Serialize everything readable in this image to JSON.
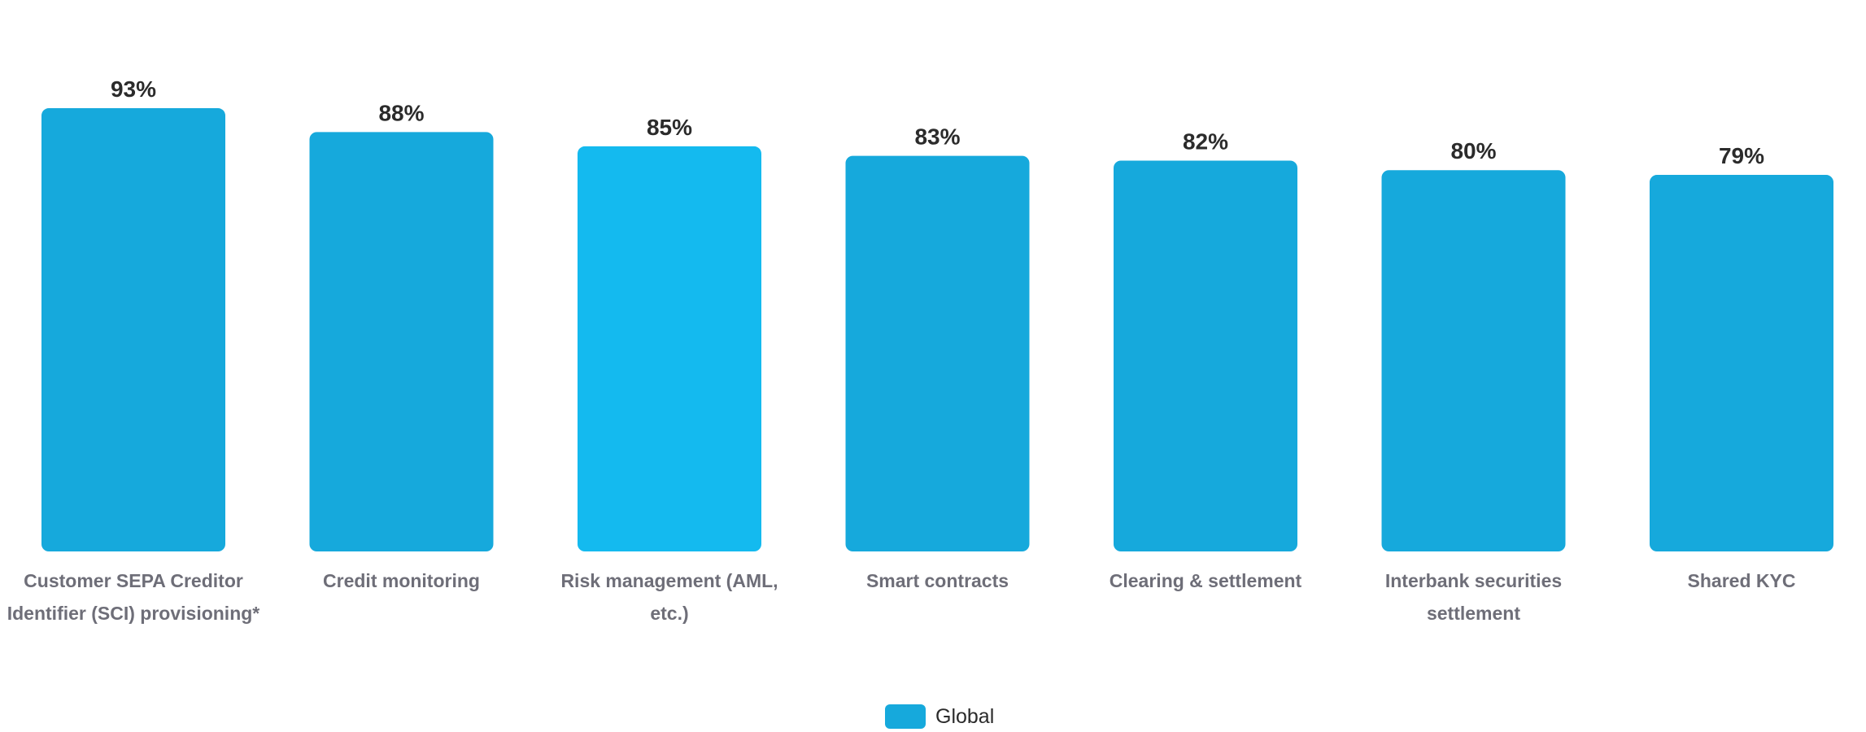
{
  "chart_data": {
    "type": "bar",
    "categories": [
      "Customer SEPA Creditor Identifier (SCI) provisioning*",
      "Credit monitoring",
      "Risk management (AML, etc.)",
      "Smart contracts",
      "Clearing & settlement",
      "Interbank securities settlement",
      "Shared KYC"
    ],
    "series": [
      {
        "name": "Global",
        "values": [
          93,
          88,
          85,
          83,
          82,
          80,
          79
        ],
        "value_labels": [
          "93%",
          "88%",
          "85%",
          "83%",
          "82%",
          "80%",
          "79%"
        ]
      }
    ],
    "title": "",
    "xlabel": "",
    "ylabel": "",
    "ylim": [
      0,
      100
    ],
    "grid": false,
    "legend_position": "bottom-center",
    "colors": {
      "bar": "#16a9dc",
      "highlight_bar": "#14baef",
      "value_text": "#2b2b2b",
      "category_text": "#6e6e78"
    },
    "highlight_index": 2
  }
}
